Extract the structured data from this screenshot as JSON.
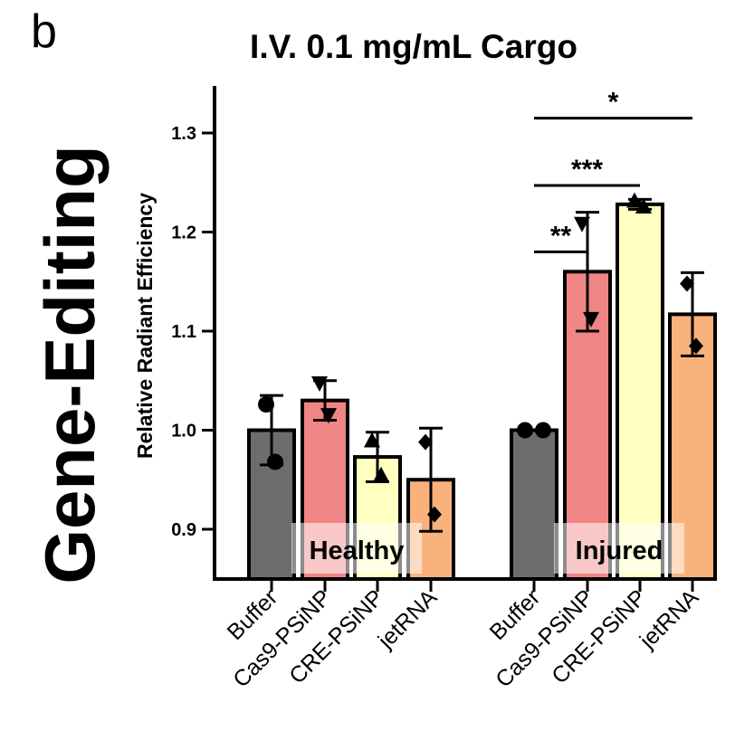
{
  "panel_letter": "b",
  "side_title": "Gene-Editing",
  "chart_data": {
    "type": "bar",
    "title": "I.V. 0.1 mg/mL Cargo",
    "xlabel": "",
    "ylabel": "Relative Radiant  Efficiency",
    "ylim": [
      0.85,
      1.35
    ],
    "yticks": [
      0.9,
      1.0,
      1.1,
      1.2,
      1.3
    ],
    "ytick_labels": [
      "0.9",
      "1.0",
      "1.1",
      "1.2",
      "1.3"
    ],
    "groups": [
      {
        "label": "Healthy",
        "bars": [
          {
            "category": "Buffer",
            "value": 1.0,
            "error": 0.035,
            "points": [
              1.026,
              0.968
            ],
            "marker": "circle"
          },
          {
            "category": "Cas9-PSiNP",
            "value": 1.03,
            "error": 0.02,
            "points": [
              1.047,
              1.015
            ],
            "marker": "triangle-down"
          },
          {
            "category": "CRE-PSiNP",
            "value": 0.973,
            "error": 0.025,
            "points": [
              0.99,
              0.955
            ],
            "marker": "triangle-up"
          },
          {
            "category": "jetRNA",
            "value": 0.95,
            "error": 0.052,
            "points": [
              0.988,
              0.915
            ],
            "marker": "diamond"
          }
        ]
      },
      {
        "label": "Injured",
        "bars": [
          {
            "category": "Buffer",
            "value": 1.0,
            "error": 0.0,
            "points": [
              1.0,
              1.0
            ],
            "marker": "circle"
          },
          {
            "category": "Cas9-PSiNP",
            "value": 1.16,
            "error": 0.06,
            "points": [
              1.208,
              1.112
            ],
            "marker": "triangle-down"
          },
          {
            "category": "CRE-PSiNP",
            "value": 1.228,
            "error": 0.005,
            "points": [
              1.232,
              1.226
            ],
            "marker": "triangle-up"
          },
          {
            "category": "jetRNA",
            "value": 1.117,
            "error": 0.042,
            "points": [
              1.148,
              1.085
            ],
            "marker": "diamond"
          }
        ]
      }
    ],
    "colors": {
      "Buffer": "#6d6d6f",
      "Cas9-PSiNP": "#f08585",
      "CRE-PSiNP": "#ffffc2",
      "jetRNA": "#f9b27b"
    },
    "significance": [
      {
        "group": "Injured",
        "from": "Buffer",
        "to": "Cas9-PSiNP",
        "label": "**",
        "y": 1.18
      },
      {
        "group": "Injured",
        "from": "Buffer",
        "to": "CRE-PSiNP",
        "label": "***",
        "y": 1.247
      },
      {
        "group": "Injured",
        "from": "Buffer",
        "to": "jetRNA",
        "label": "*",
        "y": 1.315
      }
    ],
    "grid": false,
    "legend": "none"
  }
}
